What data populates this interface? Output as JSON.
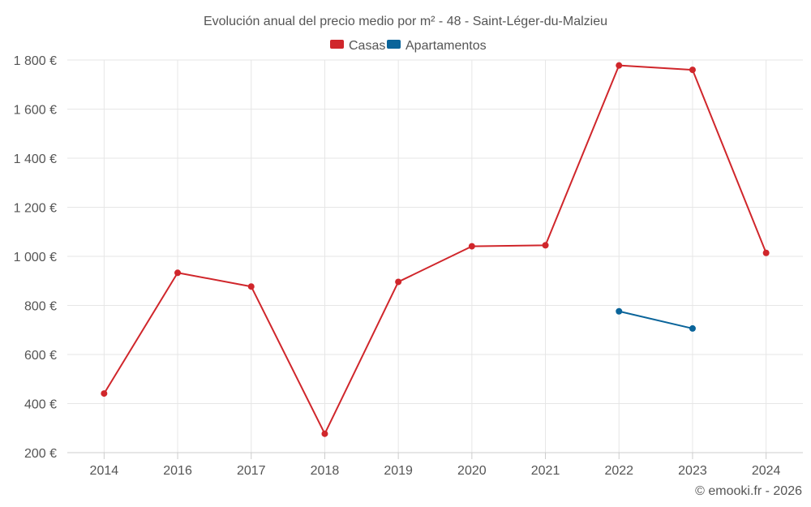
{
  "chart_data": {
    "type": "line",
    "title": "Evolución anual del precio medio por m² - 48 - Saint-Léger-du-Malzieu",
    "categories": [
      "2014",
      "2016",
      "2017",
      "2018",
      "2019",
      "2020",
      "2021",
      "2022",
      "2023",
      "2024"
    ],
    "series": [
      {
        "name": "Casas",
        "color": "#d0262b",
        "values": [
          441,
          933,
          877,
          277,
          896,
          1041,
          1045,
          1778,
          1760,
          1014
        ]
      },
      {
        "name": "Apartamentos",
        "color": "#0a649a",
        "values": [
          null,
          null,
          null,
          null,
          null,
          null,
          null,
          776,
          706,
          null
        ]
      }
    ],
    "y_ticks": [
      "200 €",
      "400 €",
      "600 €",
      "800 €",
      "1 000 €",
      "1 200 €",
      "1 400 €",
      "1 600 €",
      "1 800 €"
    ],
    "ylim": [
      200,
      1800
    ],
    "xlabel": "",
    "ylabel": "",
    "grid": true,
    "legend": "top-center"
  },
  "credit": "© emooki.fr - 2026"
}
